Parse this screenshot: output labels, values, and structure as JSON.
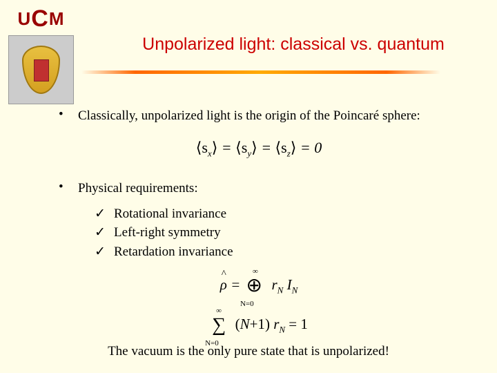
{
  "logo": {
    "text_u": "U",
    "text_c": "C",
    "text_m": "M",
    "crest_bg": "#cccccc",
    "shield_color": "#e8c040"
  },
  "title": "Unpolarized light: classical vs. quantum",
  "title_color": "#cc0000",
  "divider_gradient": [
    "#fffde8",
    "#ff6600",
    "#ffaa00",
    "#ff6600",
    "#fffde8"
  ],
  "bullet1": "Classically, unpolarized light is the origin of the Poincaré sphere:",
  "formula1": {
    "lhs1": "⟨s",
    "sub1": "x",
    "rhs1": "⟩",
    "lhs2": "⟨s",
    "sub2": "y",
    "rhs2": "⟩",
    "lhs3": "⟨s",
    "sub3": "z",
    "rhs3": "⟩",
    "eq": " = ",
    "zero": "0"
  },
  "bullet2": "Physical requirements:",
  "sub_items": [
    "Rotational invariance",
    "Left-right symmetry",
    "Retardation invariance"
  ],
  "checkmark": "✓",
  "formula2": {
    "rho": "ρ",
    "eq": " = ",
    "oplus": "⊕",
    "sup": "∞",
    "sub": "N=0",
    "term": "r",
    "term_sub": "N",
    "I": " I",
    "I_sub": "N"
  },
  "formula3": {
    "sum": "∑",
    "sup": "∞",
    "sub": "N=0",
    "open": "(",
    "N": "N",
    "plus1": "+1",
    "close": ")",
    "r": " r",
    "r_sub": "N",
    "eq": " = 1"
  },
  "closing": "The vacuum is the only pure state that is unpolarized!",
  "background_color": "#fffde8",
  "text_color": "#000000",
  "body_fontsize": 19,
  "title_fontsize": 25
}
